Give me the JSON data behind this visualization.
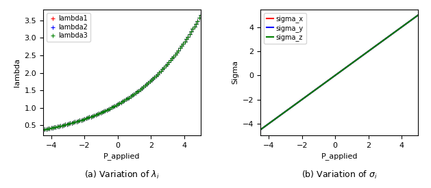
{
  "p_min": -4.5,
  "p_max": 5.0,
  "n_points": 100,
  "left_caption": "(a) Variation of $\\lambda_i$",
  "right_caption": "(b) Variation of $\\sigma_i$",
  "left_ylabel": "lambda",
  "right_ylabel": "Sigma",
  "xlabel": "P_applied",
  "legend_left": [
    "lambda1",
    "lambda2",
    "lambda3"
  ],
  "legend_right": [
    "sigma_x",
    "sigma_y",
    "sigma_z"
  ],
  "colors_left": [
    "red",
    "blue",
    "green"
  ],
  "colors_right": [
    "red",
    "blue",
    "green"
  ],
  "marker": "+",
  "markersize": 4,
  "linewidth": 1.5,
  "lambda_c": 0.24,
  "lambda_lam0": 1.1,
  "sigma_slope": 1.0,
  "sigma_intercept": 0.0,
  "figwidth": 6.29,
  "figheight": 2.75,
  "dpi": 100
}
